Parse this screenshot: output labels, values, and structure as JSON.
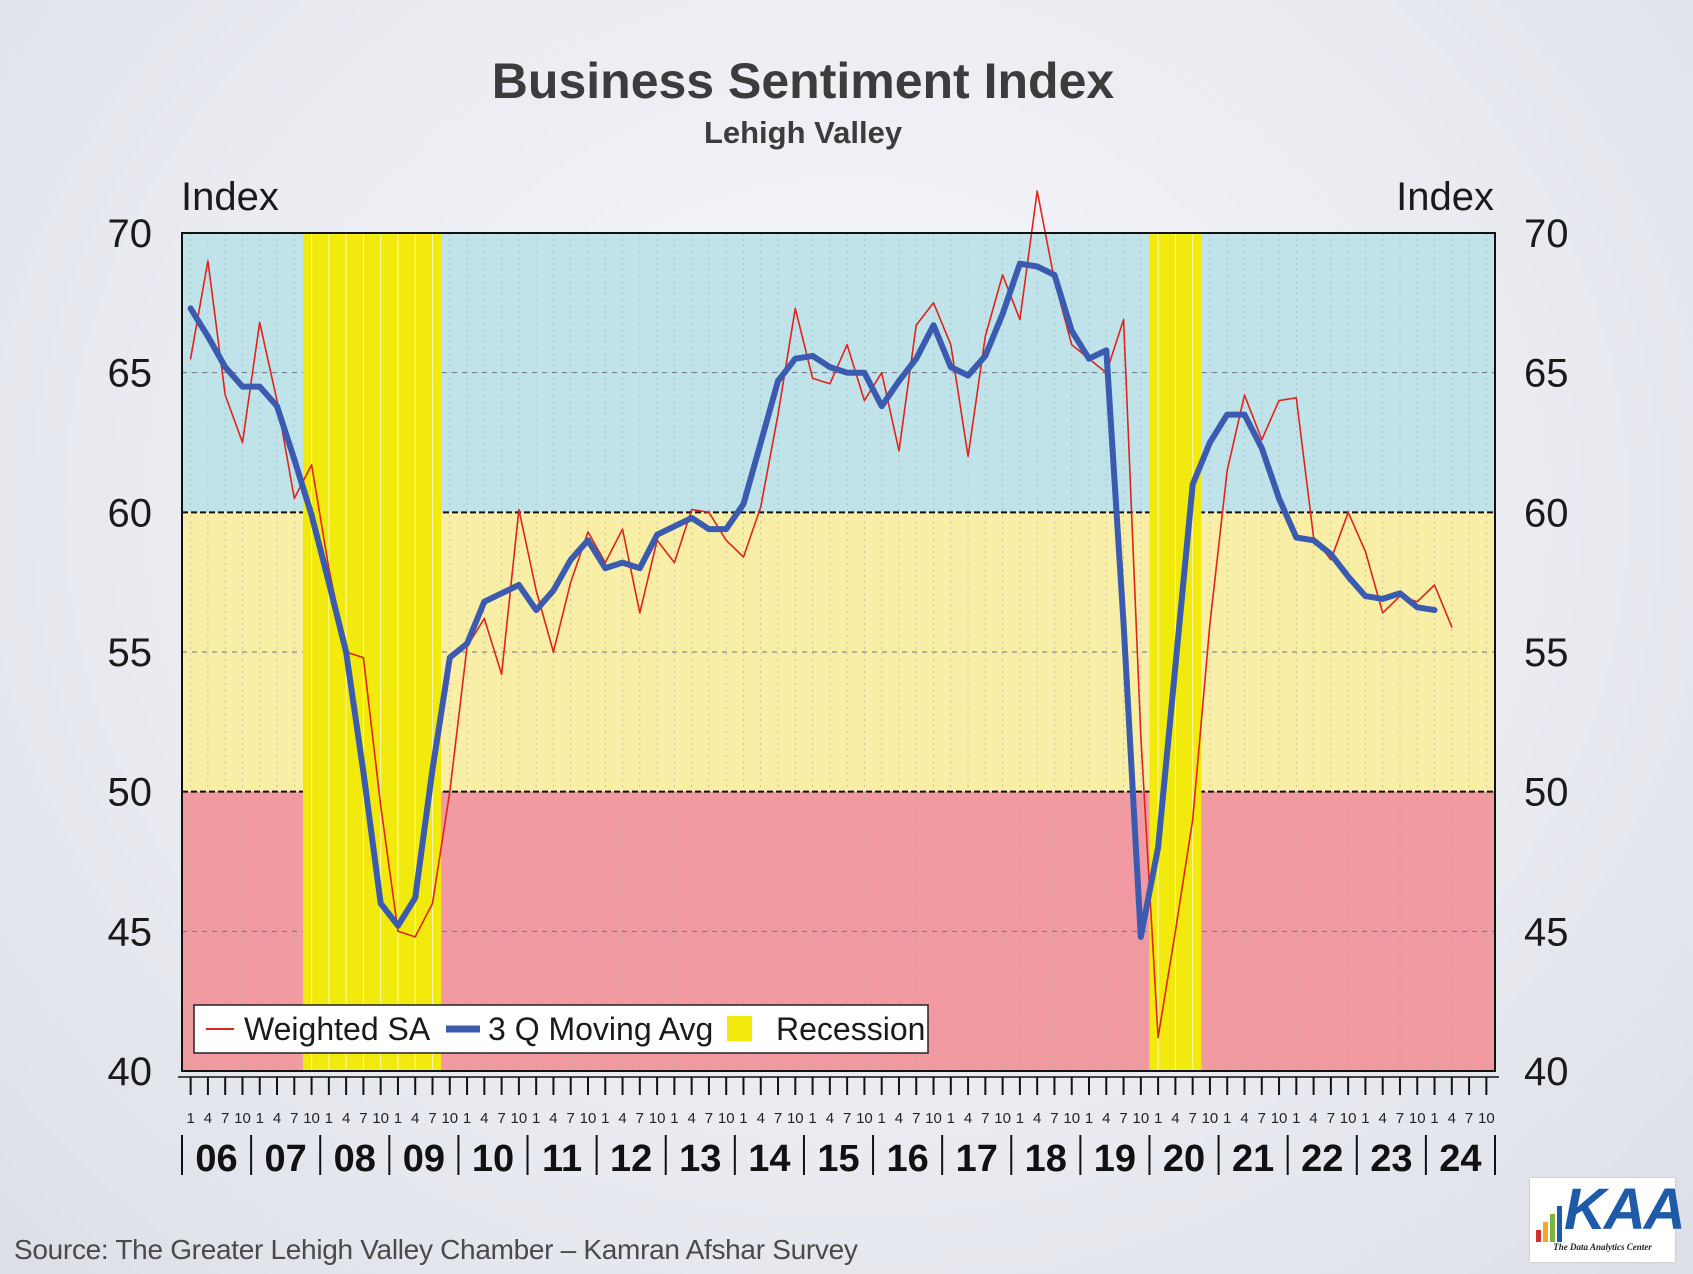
{
  "title": "Business Sentiment Index",
  "subtitle": "Lehigh Valley",
  "source": "Source: The Greater Lehigh Valley Chamber – Kamran Afshar Survey",
  "logo": {
    "text": "KAA",
    "tagline": "The Data Analytics Center"
  },
  "colors": {
    "upper_band": "#bfe3e9",
    "middle_band": "#f8eea6",
    "lower_band": "#f19aa1",
    "recession": "#f2ea0c",
    "weighted_sa": "#e0231c",
    "moving_avg": "#3b5bb0"
  },
  "chart_data": {
    "type": "line",
    "title": "Business Sentiment Index",
    "subtitle": "Lehigh Valley",
    "ylabel_left": "Index",
    "ylabel_right": "Index",
    "ylim": [
      40,
      70
    ],
    "yticks": [
      "40",
      "45",
      "50",
      "55",
      "60",
      "65",
      "70"
    ],
    "bands": [
      {
        "from": 60,
        "to": 70,
        "color": "#bfe3e9"
      },
      {
        "from": 50,
        "to": 60,
        "color": "#f8eea6"
      },
      {
        "from": 40,
        "to": 50,
        "color": "#f19aa1"
      }
    ],
    "years": [
      "06",
      "07",
      "08",
      "09",
      "10",
      "11",
      "12",
      "13",
      "14",
      "15",
      "16",
      "17",
      "18",
      "19",
      "20",
      "21",
      "22",
      "23",
      "24"
    ],
    "month_ticks": [
      "1",
      "4",
      "7",
      "10"
    ],
    "x_unit": "quarter index from Q1 2006 (0 = Jan 2006)",
    "legend": {
      "position": "bottom-left",
      "entries": [
        "Weighted SA",
        "3 Q Moving Avg",
        "Recession"
      ]
    },
    "recessions": [
      {
        "start": 7,
        "end": 14
      },
      {
        "start": 56,
        "end": 58
      }
    ],
    "series": [
      {
        "name": "Weighted SA",
        "style": "thin",
        "points": [
          [
            0,
            65.5
          ],
          [
            1,
            69.0
          ],
          [
            2,
            64.2
          ],
          [
            3,
            62.5
          ],
          [
            4,
            66.8
          ],
          [
            5,
            64.0
          ],
          [
            6,
            60.5
          ],
          [
            7,
            61.7
          ],
          [
            8,
            58.0
          ],
          [
            9,
            55.0
          ],
          [
            10,
            54.8
          ],
          [
            11,
            49.5
          ],
          [
            12,
            45.0
          ],
          [
            13,
            44.8
          ],
          [
            14,
            46.0
          ],
          [
            15,
            50.0
          ],
          [
            16,
            55.2
          ],
          [
            17,
            56.2
          ],
          [
            18,
            54.2
          ],
          [
            19,
            60.1
          ],
          [
            20,
            57.2
          ],
          [
            21,
            55.0
          ],
          [
            22,
            57.5
          ],
          [
            23,
            59.3
          ],
          [
            24,
            58.2
          ],
          [
            25,
            59.4
          ],
          [
            26,
            56.4
          ],
          [
            27,
            59.0
          ],
          [
            28,
            58.2
          ],
          [
            29,
            60.1
          ],
          [
            30,
            60.0
          ],
          [
            31,
            59.0
          ],
          [
            32,
            58.4
          ],
          [
            33,
            60.2
          ],
          [
            34,
            63.5
          ],
          [
            35,
            67.3
          ],
          [
            36,
            64.8
          ],
          [
            37,
            64.6
          ],
          [
            38,
            66.0
          ],
          [
            39,
            64.0
          ],
          [
            40,
            65.0
          ],
          [
            41,
            62.2
          ],
          [
            42,
            66.7
          ],
          [
            43,
            67.5
          ],
          [
            44,
            66.0
          ],
          [
            45,
            62.0
          ],
          [
            46,
            66.3
          ],
          [
            47,
            68.5
          ],
          [
            48,
            66.9
          ],
          [
            49,
            71.5
          ],
          [
            50,
            68.3
          ],
          [
            51,
            66.0
          ],
          [
            52,
            65.5
          ],
          [
            53,
            65.0
          ],
          [
            54,
            66.9
          ],
          [
            55,
            52.0
          ],
          [
            56,
            41.2
          ],
          [
            57,
            45.0
          ],
          [
            58,
            49.0
          ],
          [
            59,
            56.0
          ],
          [
            60,
            61.5
          ],
          [
            61,
            64.2
          ],
          [
            62,
            62.6
          ],
          [
            63,
            64.0
          ],
          [
            64,
            64.1
          ],
          [
            65,
            59.1
          ],
          [
            66,
            58.3
          ],
          [
            67,
            60.0
          ],
          [
            68,
            58.6
          ],
          [
            69,
            56.4
          ],
          [
            70,
            57.0
          ],
          [
            71,
            56.8
          ],
          [
            72,
            57.4
          ],
          [
            73,
            55.9
          ]
        ]
      },
      {
        "name": "3 Q Moving Avg",
        "style": "thick",
        "points": [
          [
            0,
            67.3
          ],
          [
            1,
            66.3
          ],
          [
            2,
            65.2
          ],
          [
            3,
            64.5
          ],
          [
            4,
            64.5
          ],
          [
            5,
            63.8
          ],
          [
            6,
            61.9
          ],
          [
            7,
            59.9
          ],
          [
            8,
            57.5
          ],
          [
            9,
            55.0
          ],
          [
            10,
            50.7
          ],
          [
            11,
            46.0
          ],
          [
            12,
            45.2
          ],
          [
            13,
            46.2
          ],
          [
            14,
            50.8
          ],
          [
            15,
            54.8
          ],
          [
            16,
            55.3
          ],
          [
            17,
            56.8
          ],
          [
            18,
            57.1
          ],
          [
            19,
            57.4
          ],
          [
            20,
            56.5
          ],
          [
            21,
            57.2
          ],
          [
            22,
            58.3
          ],
          [
            23,
            59.0
          ],
          [
            24,
            58.0
          ],
          [
            25,
            58.2
          ],
          [
            26,
            58.0
          ],
          [
            27,
            59.2
          ],
          [
            28,
            59.5
          ],
          [
            29,
            59.8
          ],
          [
            30,
            59.4
          ],
          [
            31,
            59.4
          ],
          [
            32,
            60.3
          ],
          [
            33,
            62.5
          ],
          [
            34,
            64.7
          ],
          [
            35,
            65.5
          ],
          [
            36,
            65.6
          ],
          [
            37,
            65.2
          ],
          [
            38,
            65.0
          ],
          [
            39,
            65.0
          ],
          [
            40,
            63.8
          ],
          [
            41,
            64.7
          ],
          [
            42,
            65.5
          ],
          [
            43,
            66.7
          ],
          [
            44,
            65.2
          ],
          [
            45,
            64.9
          ],
          [
            46,
            65.6
          ],
          [
            47,
            67.1
          ],
          [
            48,
            68.9
          ],
          [
            49,
            68.8
          ],
          [
            50,
            68.5
          ],
          [
            51,
            66.5
          ],
          [
            52,
            65.5
          ],
          [
            53,
            65.8
          ],
          [
            54,
            56.0
          ],
          [
            55,
            44.8
          ],
          [
            56,
            48.0
          ],
          [
            57,
            54.5
          ],
          [
            58,
            61.0
          ],
          [
            59,
            62.5
          ],
          [
            60,
            63.5
          ],
          [
            61,
            63.5
          ],
          [
            62,
            62.3
          ],
          [
            63,
            60.5
          ],
          [
            64,
            59.1
          ],
          [
            65,
            59.0
          ],
          [
            66,
            58.5
          ],
          [
            67,
            57.7
          ],
          [
            68,
            57.0
          ],
          [
            69,
            56.9
          ],
          [
            70,
            57.1
          ],
          [
            71,
            56.6
          ],
          [
            72,
            56.5
          ]
        ]
      }
    ]
  }
}
